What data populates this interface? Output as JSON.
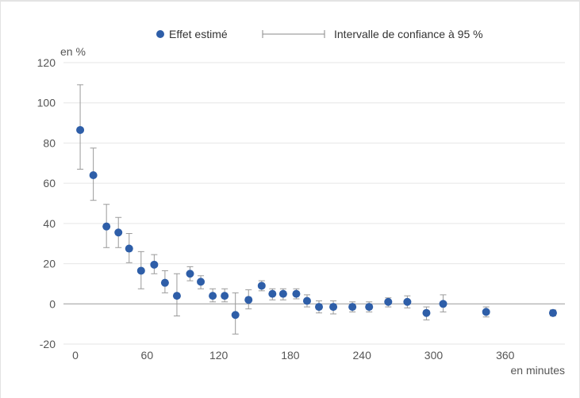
{
  "chart_data": {
    "type": "scatter",
    "ylabel": "en %",
    "xlabel": "en minutes",
    "xlim": [
      -10,
      410
    ],
    "ylim": [
      -20,
      120
    ],
    "x_ticks": [
      "0",
      "60",
      "120",
      "180",
      "240",
      "300",
      "360"
    ],
    "y_ticks": [
      "120",
      "100",
      "80",
      "60",
      "40",
      "20",
      "0",
      "-20"
    ],
    "grid": true,
    "legend_position": "top-center",
    "colors": {
      "point": "#2e5ea8",
      "errorbar": "#9a9a9a",
      "grid": "#e6e6e6",
      "zero_line": "#9a9a9a"
    },
    "legend": {
      "effect": "Effet estimé",
      "ci": "Intervalle de confiance à 95 %"
    },
    "series": [
      {
        "name": "Effet estimé",
        "points": [
          {
            "x": 4,
            "y": 86.5,
            "lo": 67,
            "hi": 109
          },
          {
            "x": 15,
            "y": 64,
            "lo": 51.5,
            "hi": 77.5
          },
          {
            "x": 26,
            "y": 38.5,
            "lo": 28,
            "hi": 49.5
          },
          {
            "x": 36,
            "y": 35.5,
            "lo": 28,
            "hi": 43
          },
          {
            "x": 45,
            "y": 27.5,
            "lo": 20.5,
            "hi": 35
          },
          {
            "x": 55,
            "y": 16.5,
            "lo": 7.5,
            "hi": 26
          },
          {
            "x": 66,
            "y": 19.5,
            "lo": 15,
            "hi": 24.5
          },
          {
            "x": 75,
            "y": 10.5,
            "lo": 5.5,
            "hi": 16.5
          },
          {
            "x": 85,
            "y": 4,
            "lo": -6,
            "hi": 15
          },
          {
            "x": 96,
            "y": 15,
            "lo": 11.5,
            "hi": 18.5
          },
          {
            "x": 105,
            "y": 11,
            "lo": 7.5,
            "hi": 14
          },
          {
            "x": 115,
            "y": 4,
            "lo": 1,
            "hi": 7.5
          },
          {
            "x": 125,
            "y": 4,
            "lo": 1,
            "hi": 7.5
          },
          {
            "x": 134,
            "y": -5.5,
            "lo": -15,
            "hi": 5.5
          },
          {
            "x": 145,
            "y": 2,
            "lo": -2.5,
            "hi": 7
          },
          {
            "x": 156,
            "y": 9,
            "lo": 6.5,
            "hi": 11.5
          },
          {
            "x": 165,
            "y": 5,
            "lo": 2,
            "hi": 7.5
          },
          {
            "x": 174,
            "y": 5,
            "lo": 2,
            "hi": 7.5
          },
          {
            "x": 185,
            "y": 5,
            "lo": 2.5,
            "hi": 7.5
          },
          {
            "x": 194,
            "y": 1.5,
            "lo": -1.5,
            "hi": 4.5
          },
          {
            "x": 204,
            "y": -1.5,
            "lo": -4.5,
            "hi": 1.5
          },
          {
            "x": 216,
            "y": -1.5,
            "lo": -5,
            "hi": 1.5
          },
          {
            "x": 232,
            "y": -1.5,
            "lo": -4,
            "hi": 1
          },
          {
            "x": 246,
            "y": -1.5,
            "lo": -4,
            "hi": 1
          },
          {
            "x": 262,
            "y": 1,
            "lo": -1.5,
            "hi": 3
          },
          {
            "x": 278,
            "y": 1,
            "lo": -2,
            "hi": 4
          },
          {
            "x": 294,
            "y": -4.5,
            "lo": -8,
            "hi": -1.5
          },
          {
            "x": 308,
            "y": 0,
            "lo": -4,
            "hi": 4.5
          },
          {
            "x": 344,
            "y": -4,
            "lo": -6.5,
            "hi": -1.5
          },
          {
            "x": 400,
            "y": -4.5,
            "lo": -6,
            "hi": -3
          }
        ]
      }
    ]
  }
}
